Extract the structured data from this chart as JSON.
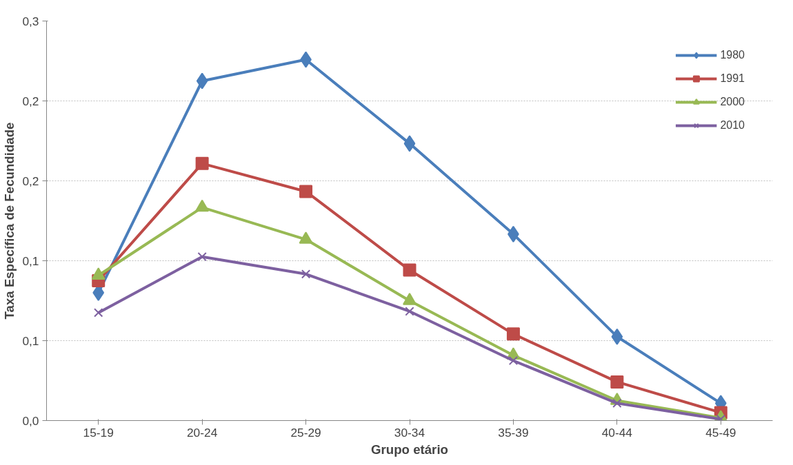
{
  "chart_data": {
    "type": "line",
    "xlabel": "Grupo etário",
    "ylabel": "Taxa Específica de Fecundidade",
    "categories": [
      "15-19",
      "20-24",
      "25-29",
      "30-34",
      "35-39",
      "40-44",
      "45-49"
    ],
    "series": [
      {
        "name": "1980",
        "color": "#4a7ebb",
        "marker": "diamond",
        "values": [
          0.096,
          0.255,
          0.271,
          0.208,
          0.14,
          0.063,
          0.013
        ]
      },
      {
        "name": "1991",
        "color": "#be4b48",
        "marker": "square",
        "values": [
          0.105,
          0.193,
          0.172,
          0.113,
          0.065,
          0.029,
          0.006
        ]
      },
      {
        "name": "2000",
        "color": "#98b954",
        "marker": "triangle",
        "values": [
          0.109,
          0.16,
          0.136,
          0.09,
          0.049,
          0.015,
          0.002
        ]
      },
      {
        "name": "2010",
        "color": "#7d60a0",
        "marker": "cross",
        "values": [
          0.081,
          0.123,
          0.11,
          0.082,
          0.045,
          0.013,
          0.001
        ]
      }
    ],
    "ylim": [
      0,
      0.3
    ],
    "yticks": [
      {
        "value": 0,
        "label": "0,0"
      },
      {
        "value": 0.06,
        "label": "0,1"
      },
      {
        "value": 0.12,
        "label": "0,1"
      },
      {
        "value": 0.18,
        "label": "0,2"
      },
      {
        "value": 0.24,
        "label": "0,2"
      },
      {
        "value": 0.3,
        "label": "0,3"
      }
    ],
    "grid": "y",
    "legend": "top right",
    "line_style": "solid"
  }
}
